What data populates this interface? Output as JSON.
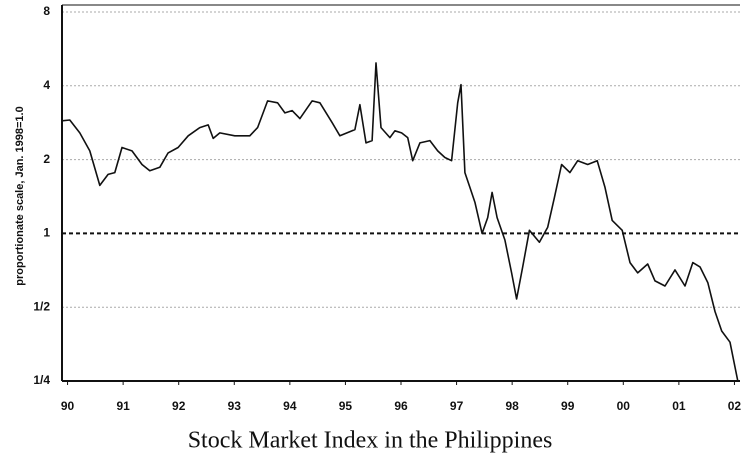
{
  "chart_data": {
    "type": "line",
    "title": "Stock Market Index in the Philippines",
    "y_label": "proportionate scale, Jan. 1998=1.0",
    "log_scale": true,
    "grid": true,
    "reference_value": 1,
    "color": "#111111",
    "xlim": [
      1989.9,
      2002.1
    ],
    "ylim": [
      0.25,
      8
    ],
    "xticks": [
      {
        "value": 1990,
        "label": "90"
      },
      {
        "value": 1991,
        "label": "91"
      },
      {
        "value": 1992,
        "label": "92"
      },
      {
        "value": 1993,
        "label": "93"
      },
      {
        "value": 1994,
        "label": "94"
      },
      {
        "value": 1995,
        "label": "95"
      },
      {
        "value": 1996,
        "label": "96"
      },
      {
        "value": 1997,
        "label": "97"
      },
      {
        "value": 1998,
        "label": "98"
      },
      {
        "value": 1999,
        "label": "99"
      },
      {
        "value": 2000,
        "label": "00"
      },
      {
        "value": 2001,
        "label": "01"
      },
      {
        "value": 2002,
        "label": "02"
      }
    ],
    "yticks": [
      {
        "value": 0.25,
        "label": "1/4"
      },
      {
        "value": 0.5,
        "label": "1/2"
      },
      1,
      2,
      4,
      8
    ],
    "x": [
      1989.9,
      1990.04,
      1990.22,
      1990.4,
      1990.58,
      1990.73,
      1990.85,
      1990.98,
      1991.16,
      1991.34,
      1991.48,
      1991.66,
      1991.81,
      1991.99,
      1992.17,
      1992.38,
      1992.53,
      1992.62,
      1992.74,
      1993.01,
      1993.28,
      1993.42,
      1993.6,
      1993.78,
      1993.91,
      1994.04,
      1994.18,
      1994.4,
      1994.54,
      1994.76,
      1994.9,
      1995.17,
      1995.26,
      1995.37,
      1995.48,
      1995.55,
      1995.64,
      1995.8,
      1995.89,
      1996.01,
      1996.12,
      1996.21,
      1996.34,
      1996.52,
      1996.66,
      1996.79,
      1996.91,
      1997.02,
      1997.08,
      1997.15,
      1997.24,
      1997.33,
      1997.46,
      1997.56,
      1997.64,
      1997.73,
      1997.87,
      1997.99,
      1998.08,
      1998.19,
      1998.31,
      1998.49,
      1998.64,
      1998.76,
      1998.89,
      1999.04,
      1999.18,
      1999.36,
      1999.53,
      1999.67,
      1999.8,
      1999.98,
      2000.12,
      2000.26,
      2000.44,
      2000.57,
      2000.75,
      2000.93,
      2001.11,
      2001.25,
      2001.38,
      2001.52,
      2001.65,
      2001.77,
      2001.92,
      2002.06
    ],
    "values": [
      2.88,
      2.9,
      2.57,
      2.17,
      1.57,
      1.74,
      1.77,
      2.24,
      2.17,
      1.91,
      1.8,
      1.86,
      2.13,
      2.24,
      2.5,
      2.7,
      2.77,
      2.44,
      2.57,
      2.5,
      2.5,
      2.7,
      3.47,
      3.41,
      3.1,
      3.17,
      2.94,
      3.47,
      3.41,
      2.83,
      2.5,
      2.65,
      3.35,
      2.34,
      2.39,
      4.96,
      2.7,
      2.46,
      2.62,
      2.57,
      2.46,
      1.98,
      2.34,
      2.39,
      2.17,
      2.04,
      1.98,
      3.41,
      4.04,
      1.77,
      1.54,
      1.34,
      1.0,
      1.16,
      1.47,
      1.16,
      0.94,
      0.69,
      0.54,
      0.73,
      1.03,
      0.92,
      1.06,
      1.4,
      1.91,
      1.77,
      1.98,
      1.91,
      1.98,
      1.54,
      1.13,
      1.03,
      0.76,
      0.69,
      0.75,
      0.64,
      0.61,
      0.71,
      0.61,
      0.76,
      0.73,
      0.63,
      0.48,
      0.4,
      0.36,
      0.25
    ]
  }
}
